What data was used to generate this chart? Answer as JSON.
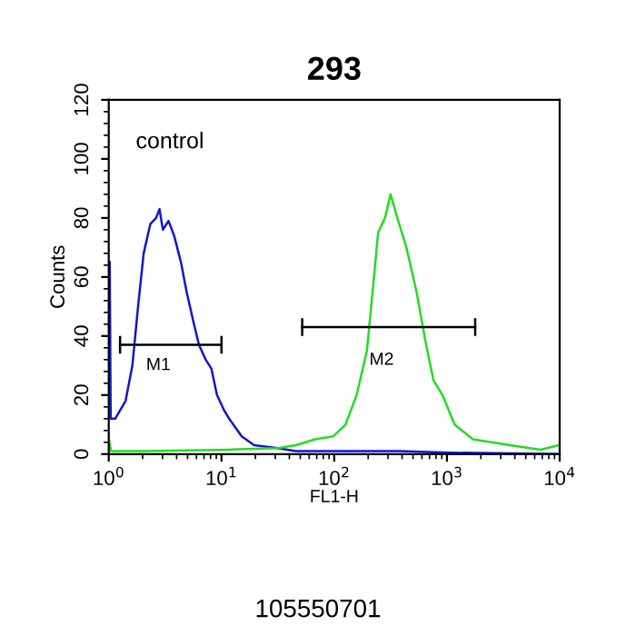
{
  "chart_data": {
    "type": "line",
    "title": "293",
    "xlabel": "FL1-H",
    "ylabel": "Counts",
    "log": "x",
    "xlim": [
      1,
      10000
    ],
    "ylim": [
      0,
      120
    ],
    "xticks": [
      {
        "value": 1,
        "label": "10$^{0}$"
      },
      {
        "value": 10,
        "label": "10$^{1}$"
      },
      {
        "value": 100,
        "label": "10$^{2}$"
      },
      {
        "value": 1000,
        "label": "10$^{3}$"
      },
      {
        "value": 10000,
        "label": "10$^{4}$"
      }
    ],
    "yticks": [
      0,
      20,
      40,
      60,
      80,
      100,
      120
    ],
    "grid": false,
    "legend": false,
    "series": [
      {
        "color": "#1515c8",
        "x": [
          1.02,
          1.04,
          1.08,
          1.14,
          1.41,
          1.62,
          1.82,
          2.04,
          2.34,
          2.63,
          2.82,
          3.02,
          3.39,
          3.8,
          4.37,
          4.9,
          5.62,
          6.31,
          7.24,
          8.13,
          9.12,
          10.5,
          11.7,
          15.1,
          19.5,
          31.6,
          45.7,
          110,
          380,
          1050,
          10000
        ],
        "values": [
          65,
          12,
          12,
          12,
          18,
          30,
          50,
          68,
          78,
          80,
          83,
          76,
          79,
          74,
          65,
          55,
          45,
          37,
          32,
          29,
          20,
          15,
          12,
          6,
          3,
          2,
          1,
          1,
          1,
          0.5,
          0
        ]
      },
      {
        "color": "#22dd22",
        "x": [
          1.0,
          1.05,
          2.0,
          11.5,
          31.6,
          45.7,
          67.6,
          97.7,
          126,
          158,
          195,
          219,
          245,
          282,
          316,
          363,
          437,
          537,
          646,
          759,
          912,
          1170,
          1700,
          3630,
          6760,
          9770
        ],
        "values": [
          5,
          1,
          1,
          1.5,
          2,
          3,
          5,
          6,
          10,
          20,
          35,
          55,
          75,
          80,
          88,
          80,
          70,
          55,
          38,
          25,
          20,
          10,
          5,
          3,
          1.5,
          3
        ]
      },
      {
        "color": "#000000",
        "x": [
          1.26,
          10
        ],
        "values": [
          37,
          37
        ],
        "errors": [
          3,
          3
        ]
      },
      {
        "color": "#000000",
        "x": [
          52,
          1780
        ],
        "values": [
          43,
          43
        ],
        "errors": [
          3,
          3
        ]
      }
    ],
    "annotations": [
      "M1",
      "M2",
      "control",
      "105550701"
    ]
  }
}
